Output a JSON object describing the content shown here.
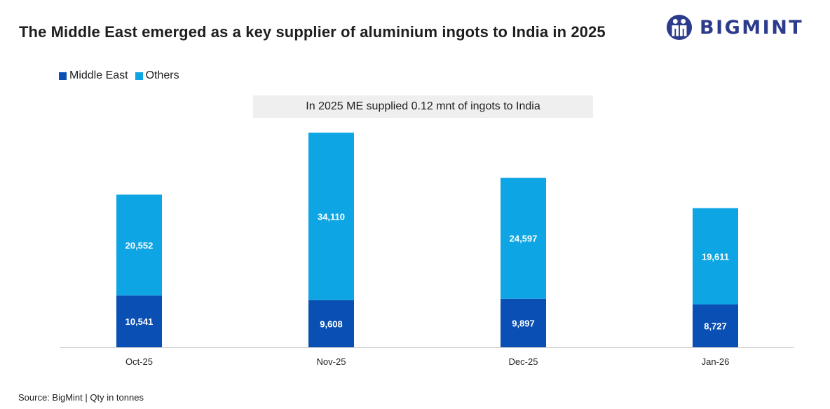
{
  "header": {
    "title": "The Middle East emerged as a key supplier of aluminium ingots to India in 2025",
    "logo_text": "BIGMINT",
    "logo_icon": "bigmint-people-logo-icon"
  },
  "legend": {
    "items": [
      {
        "label": "Middle East",
        "color": "#0a4fb3"
      },
      {
        "label": "Others",
        "color": "#0ea5e4"
      }
    ]
  },
  "callout": {
    "text": "In 2025 ME supplied 0.12 mnt of ingots to India"
  },
  "footer": {
    "source": "Source: BigMint | Qty in tonnes"
  },
  "chart_data": {
    "type": "bar",
    "stacked": true,
    "categories": [
      "Oct-25",
      "Nov-25",
      "Dec-25",
      "Jan-26"
    ],
    "series": [
      {
        "name": "Middle East",
        "color": "#0a4fb3",
        "values": [
          10541,
          9608,
          9897,
          8727
        ],
        "labels": [
          "10,541",
          "9,608",
          "9,897",
          "8,727"
        ]
      },
      {
        "name": "Others",
        "color": "#0ea5e4",
        "values": [
          20552,
          34110,
          24597,
          19611
        ],
        "labels": [
          "20,552",
          "34,110",
          "24,597",
          "19,611"
        ]
      }
    ],
    "ylim": [
      0,
      44300
    ],
    "grid": false,
    "legend_position": "top-left",
    "data_labels": true
  }
}
